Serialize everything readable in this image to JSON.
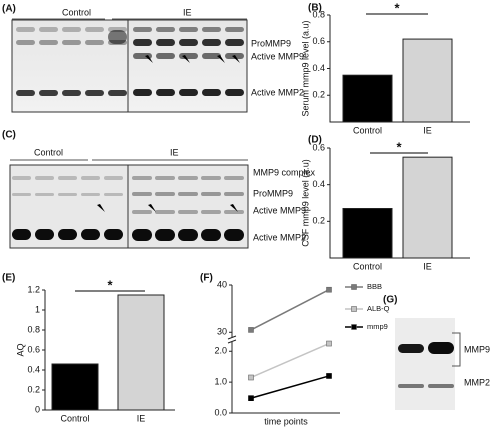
{
  "panels": {
    "a": {
      "label": "(A)",
      "groups": [
        "Control",
        "IE"
      ],
      "bands": [
        "ProMMP9",
        "Active MMP9",
        "Active MMP2"
      ]
    },
    "b": {
      "label": "(B)"
    },
    "c": {
      "label": "(C)",
      "groups": [
        "Control",
        "IE"
      ],
      "bands": [
        "MMP9 complex",
        "ProMMP9",
        "Active MMP9",
        "Active MMP2"
      ]
    },
    "d": {
      "label": "(D)"
    },
    "e": {
      "label": "(E)"
    },
    "f": {
      "label": "(F)"
    },
    "g": {
      "label": "(G)",
      "bands": [
        "MMP9",
        "MMP2"
      ]
    }
  },
  "chart_data": [
    {
      "type": "bar",
      "ylabel": "Serum mmp9 level (a.u)",
      "categories": [
        "Control",
        "IE"
      ],
      "values": [
        0.35,
        0.62
      ],
      "colors": [
        "#000000",
        "#d4d4d4"
      ],
      "ylim": [
        0,
        0.8
      ],
      "yticks": [
        0.2,
        0.4,
        0.6,
        0.8
      ],
      "annotation": "*"
    },
    {
      "type": "bar",
      "ylabel": "CSF mmp9 level (a.u)",
      "categories": [
        "Control",
        "IE"
      ],
      "values": [
        0.27,
        0.55
      ],
      "colors": [
        "#000000",
        "#d4d4d4"
      ],
      "ylim": [
        0,
        0.6
      ],
      "yticks": [
        0.2,
        0.4,
        0.6
      ],
      "annotation": "*"
    },
    {
      "type": "bar",
      "ylabel": "AQ",
      "categories": [
        "Control",
        "IE"
      ],
      "values": [
        0.46,
        1.15
      ],
      "colors": [
        "#000000",
        "#d4d4d4"
      ],
      "ylim": [
        0,
        1.2
      ],
      "yticks": [
        0,
        0.2,
        0.4,
        0.6,
        0.8,
        1,
        1.2
      ],
      "annotation": "*"
    },
    {
      "type": "line",
      "xlabel": "time points",
      "categories": [
        null,
        null
      ],
      "series": [
        {
          "name": "BBB",
          "color": "#7a7a7a",
          "values": [
            30.5,
            39
          ]
        },
        {
          "name": "ALB-Q",
          "color": "#c4c4c4",
          "values": [
            1.15,
            2.25
          ]
        },
        {
          "name": "mmp9",
          "color": "#000000",
          "values": [
            0.48,
            1.2
          ]
        }
      ],
      "ylim": [
        0,
        40
      ],
      "ybreak": [
        2.3,
        29
      ],
      "yticks": [
        {
          "value": 0,
          "label": "0.0"
        },
        {
          "value": 1,
          "label": "1.0"
        },
        {
          "value": 2,
          "label": "2.0"
        },
        30,
        40
      ]
    }
  ]
}
